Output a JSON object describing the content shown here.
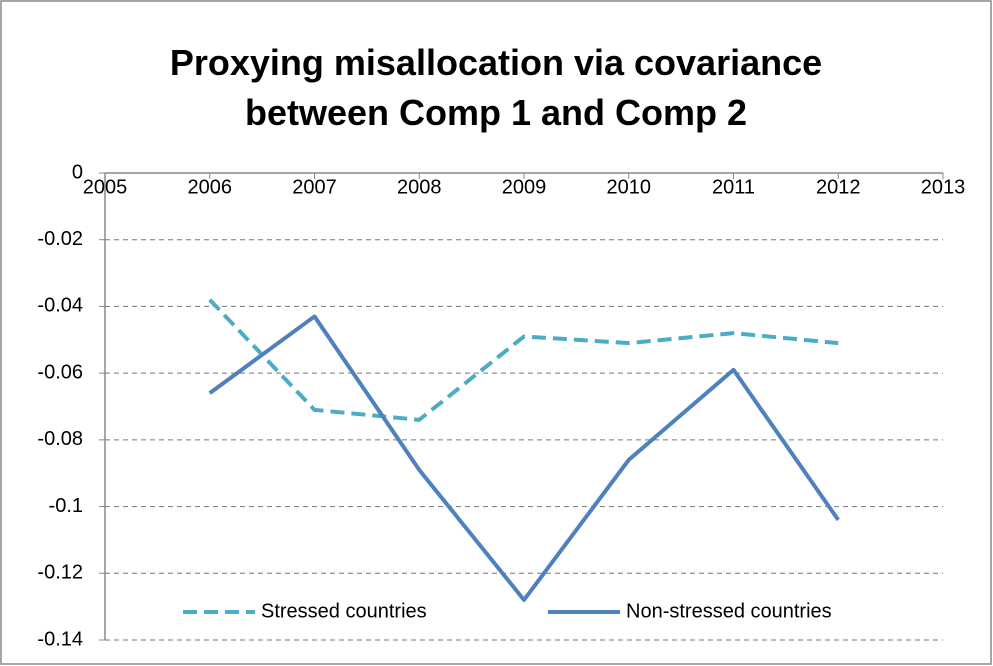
{
  "chart_data": {
    "type": "line",
    "title": "Proxying misallocation via covariance between Comp 1 and Comp 2",
    "x": [
      2006,
      2007,
      2008,
      2009,
      2010,
      2011,
      2012
    ],
    "series": [
      {
        "name": "Stressed countries",
        "color": "#4bacc6",
        "dashed": true,
        "values": [
          -0.038,
          -0.071,
          -0.074,
          -0.049,
          -0.051,
          -0.048,
          -0.051
        ]
      },
      {
        "name": "Non-stressed countries",
        "color": "#4f81bd",
        "dashed": false,
        "values": [
          -0.066,
          -0.043,
          -0.089,
          -0.128,
          -0.086,
          -0.059,
          -0.104
        ]
      }
    ],
    "xlim": [
      2005,
      2013
    ],
    "xticks": [
      2005,
      2006,
      2007,
      2008,
      2009,
      2010,
      2011,
      2012,
      2013
    ],
    "ylim": [
      -0.14,
      0
    ],
    "yticks": [
      0,
      -0.02,
      -0.04,
      -0.06,
      -0.08,
      -0.1,
      -0.12,
      -0.14
    ],
    "grid": true,
    "legend": "bottom"
  }
}
